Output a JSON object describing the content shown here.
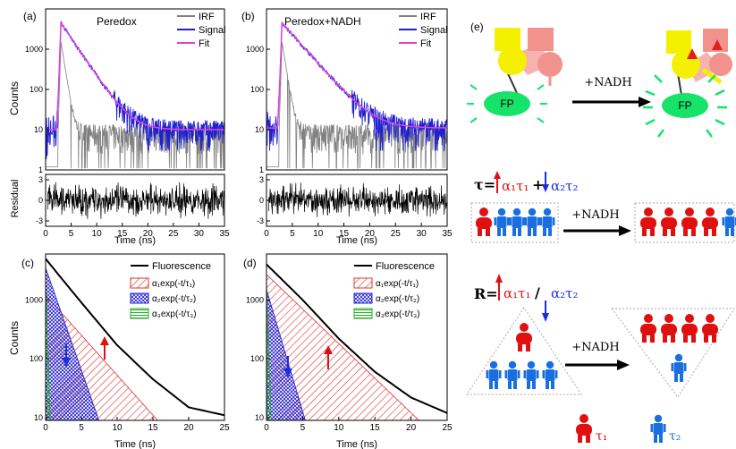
{
  "panels": {
    "a": {
      "label": "(a)",
      "title": "Peredox",
      "legend": [
        "IRF",
        "Signal",
        "Fit"
      ],
      "ylabel": "Counts",
      "residual_label": "Residual",
      "xlabel": "Time (ns)"
    },
    "b": {
      "label": "(b)",
      "title": "Peredox+NADH",
      "legend": [
        "IRF",
        "Signal",
        "Fit"
      ],
      "xlabel": "Time (ns)"
    },
    "c": {
      "label": "(c)",
      "ylabel": "Counts",
      "xlabel": "Time (ns)",
      "legend": [
        "Fluorescence",
        "α₁exp(-t/τ₁)",
        "α₂exp(-t/τ₂)",
        "α₃exp(-t/τ₃)"
      ]
    },
    "d": {
      "label": "(d)",
      "xlabel": "Time (ns)",
      "legend": [
        "Fluorescence",
        "α₁exp(-t/τ₁)",
        "α₂exp(-t/τ₂)",
        "α₃exp(-t/τ₃)"
      ]
    },
    "e": {
      "label": "(e)",
      "fp_label": "FP",
      "nadh_label": "+NADH",
      "tau_prefix": "τ=",
      "tau_term1": "α₁τ₁",
      "tau_plus": "+",
      "tau_term2": "α₂τ₂",
      "r_prefix": "R=",
      "r_term1": "α₁τ₁",
      "r_slash": "/",
      "r_term2": "α₂τ₂",
      "legend_tau1": "τ₁",
      "legend_tau2": "τ₂"
    }
  },
  "chart_data": [
    {
      "panel": "a",
      "type": "line",
      "x_range": [
        0,
        35
      ],
      "y_scale": "log",
      "y_range": [
        1,
        10000
      ],
      "x_ticks": [
        0,
        5,
        10,
        15,
        20,
        25,
        30,
        35
      ],
      "y_ticks": [
        1,
        10,
        100,
        1000
      ],
      "residual_ticks": [
        3,
        0,
        -3
      ],
      "series": [
        {
          "name": "IRF",
          "color": "#808080",
          "peak_time": 3,
          "peak": 1500,
          "baseline": 8
        },
        {
          "name": "Signal",
          "color": "#2020d0",
          "peak_time": 3,
          "peak": 4500,
          "tau": 2.3,
          "baseline": 10
        },
        {
          "name": "Fit",
          "color": "#e040e0",
          "peak_time": 3,
          "peak": 4500,
          "tau": 2.3,
          "baseline": 10
        }
      ]
    },
    {
      "panel": "b",
      "type": "line",
      "x_range": [
        0,
        35
      ],
      "y_scale": "log",
      "y_range": [
        1,
        10000
      ],
      "x_ticks": [
        0,
        5,
        10,
        15,
        20,
        25,
        30,
        35
      ],
      "y_ticks": [
        1,
        10,
        100,
        1000
      ],
      "residual_ticks": [
        3,
        0,
        -3
      ],
      "series": [
        {
          "name": "IRF",
          "color": "#808080",
          "peak_time": 3,
          "peak": 1500,
          "baseline": 8
        },
        {
          "name": "Signal",
          "color": "#2020d0",
          "peak_time": 3,
          "peak": 4500,
          "tau": 3.0,
          "baseline": 11
        },
        {
          "name": "Fit",
          "color": "#e040e0",
          "peak_time": 3,
          "peak": 4500,
          "tau": 3.0,
          "baseline": 11
        }
      ]
    },
    {
      "panel": "c",
      "type": "area",
      "x_range": [
        0,
        25
      ],
      "y_scale": "log",
      "y_range": [
        9,
        6000
      ],
      "x_ticks": [
        0,
        5,
        10,
        15,
        20,
        25
      ],
      "y_ticks": [
        10,
        100,
        1000
      ],
      "fluorescence": {
        "color": "#000000",
        "points": [
          [
            0,
            5000
          ],
          [
            2,
            2500
          ],
          [
            5,
            900
          ],
          [
            10,
            170
          ],
          [
            15,
            45
          ],
          [
            20,
            15
          ],
          [
            25,
            11
          ]
        ]
      },
      "components": [
        {
          "name": "α₁exp(-t/τ₁)",
          "color": "#e03030",
          "a": 1200,
          "tau": 3.2
        },
        {
          "name": "α₂exp(-t/τ₂)",
          "color": "#2020d0",
          "a": 3500,
          "tau": 1.25
        },
        {
          "name": "α₃exp(-t/τ₃)",
          "color": "#20b020",
          "a": 2000,
          "tau": 0.12
        }
      ]
    },
    {
      "panel": "d",
      "type": "area",
      "x_range": [
        0,
        25
      ],
      "y_scale": "log",
      "y_range": [
        9,
        6000
      ],
      "x_ticks": [
        0,
        5,
        10,
        15,
        20,
        25
      ],
      "y_ticks": [
        10,
        100,
        1000
      ],
      "fluorescence": {
        "color": "#000000",
        "points": [
          [
            0,
            4000
          ],
          [
            2,
            2300
          ],
          [
            5,
            1000
          ],
          [
            10,
            220
          ],
          [
            15,
            60
          ],
          [
            20,
            22
          ],
          [
            25,
            12
          ]
        ]
      },
      "components": [
        {
          "name": "α₁exp(-t/τ₁)",
          "color": "#e03030",
          "a": 2700,
          "tau": 3.7
        },
        {
          "name": "α₂exp(-t/τ₂)",
          "color": "#2020d0",
          "a": 1500,
          "tau": 1.05
        },
        {
          "name": "α₃exp(-t/τ₃)",
          "color": "#20b020",
          "a": 2000,
          "tau": 0.12
        }
      ]
    }
  ],
  "colors": {
    "red": "#e01010",
    "blue": "#1a6fe0",
    "yellow": "#f5f000",
    "pink": "#f2928c",
    "green": "#17e36a",
    "irf": "#808080",
    "signal": "#2020d0",
    "fit": "#e040e0"
  }
}
